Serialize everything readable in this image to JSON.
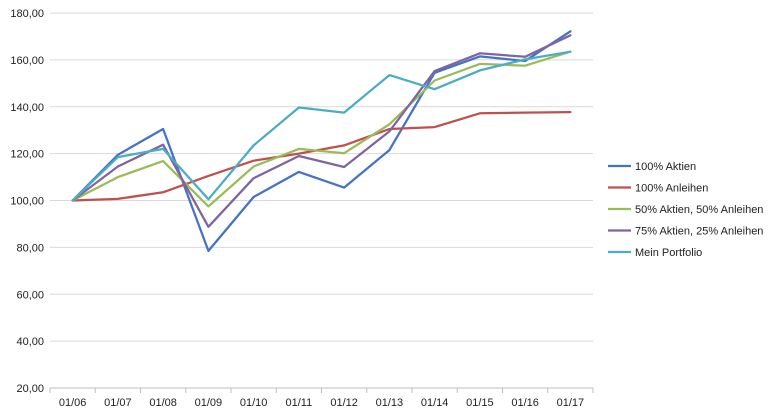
{
  "chart_data": {
    "type": "line",
    "title": "",
    "xlabel": "",
    "ylabel": "",
    "ylim": [
      20,
      180
    ],
    "y_ticks": [
      "20,00",
      "40,00",
      "60,00",
      "80,00",
      "100,00",
      "120,00",
      "140,00",
      "160,00",
      "180,00"
    ],
    "categories": [
      "01/06",
      "01/07",
      "01/08",
      "01/09",
      "01/10",
      "01/11",
      "01/12",
      "01/13",
      "01/14",
      "01/15",
      "01/16",
      "01/17"
    ],
    "grid": true,
    "legend_position": "right",
    "series": [
      {
        "name": "100% Aktien",
        "color": "#4472c4",
        "values": [
          100,
          119.5,
          130.5,
          78.5,
          101.5,
          112.2,
          105.5,
          121.5,
          154.5,
          161.5,
          159.5,
          172.2
        ]
      },
      {
        "name": "100% Anleihen",
        "color": "#c0504d",
        "values": [
          100,
          100.7,
          103.5,
          110.5,
          117,
          120,
          123.5,
          130.5,
          131.3,
          137.2,
          137.5,
          137.7
        ]
      },
      {
        "name": "50% Aktien, 50% Anleihen",
        "color": "#9bbb59",
        "values": [
          100,
          110,
          116.8,
          97.5,
          114.5,
          122,
          120.2,
          132.5,
          151.2,
          158.3,
          157.5,
          163.5
        ]
      },
      {
        "name": "75% Aktien, 25% Anleihen",
        "color": "#8064a2",
        "values": [
          100,
          114.5,
          123.8,
          88.8,
          109.5,
          119,
          114.3,
          129.5,
          155.2,
          162.8,
          161.3,
          170.5
        ]
      },
      {
        "name": "Mein Portfolio",
        "color": "#4bacc6",
        "values": [
          100,
          118.5,
          122,
          100.5,
          123.5,
          139.7,
          137.5,
          153.5,
          147.5,
          155.5,
          160.2,
          163.5
        ]
      }
    ]
  }
}
